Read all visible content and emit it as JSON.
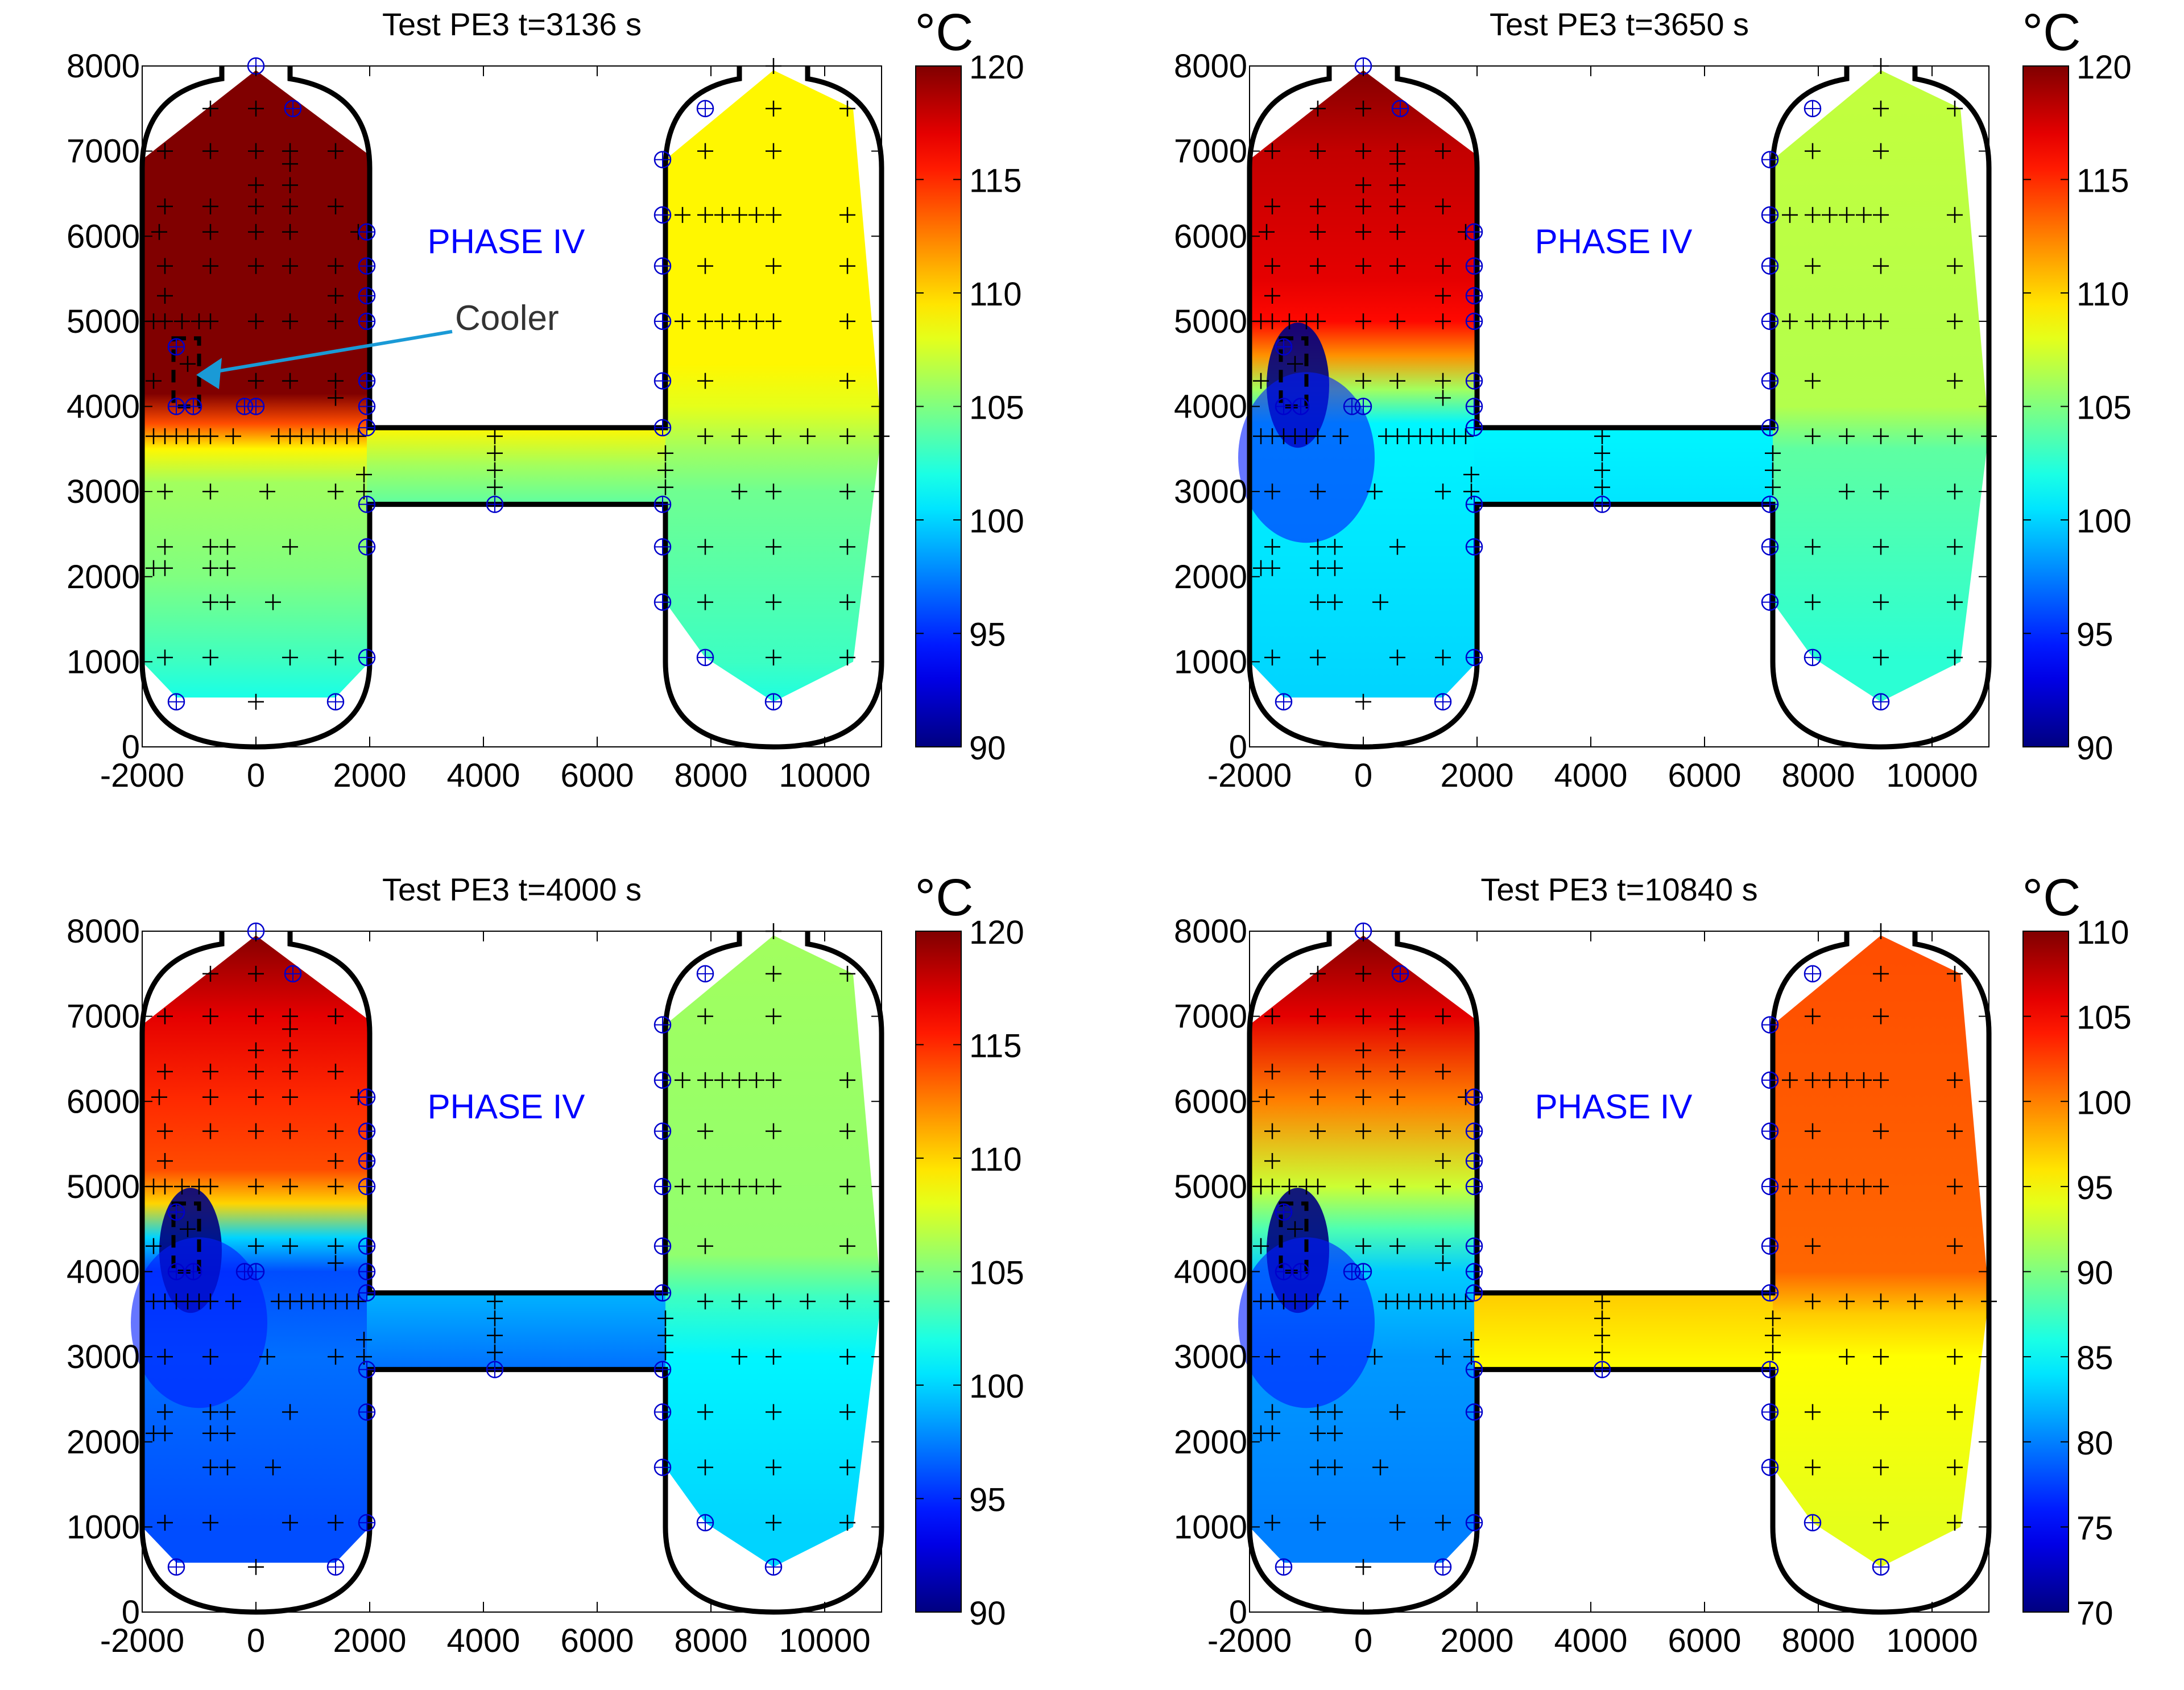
{
  "chart_data": [
    {
      "type": "heatmap",
      "title": "Test PE3     t=3136 s",
      "unit": "°C",
      "annotation": "PHASE IV",
      "callout": "Cooler",
      "xlim": [
        -2000,
        11000
      ],
      "ylim": [
        0,
        8000
      ],
      "xticks": [
        -2000,
        0,
        2000,
        4000,
        6000,
        8000,
        10000
      ],
      "yticks": [
        0,
        1000,
        2000,
        3000,
        4000,
        5000,
        6000,
        7000,
        8000
      ],
      "clim": [
        90,
        120
      ],
      "cticks": [
        90,
        95,
        100,
        105,
        110,
        115,
        120
      ],
      "cooler_spot": null,
      "field": {
        "left": [
          [
            8000,
            120
          ],
          [
            4150,
            120
          ],
          [
            3800,
            114
          ],
          [
            3500,
            109
          ],
          [
            3100,
            106
          ],
          [
            2000,
            105
          ],
          [
            1000,
            103
          ],
          [
            600,
            102
          ]
        ],
        "pipe": [
          [
            3750,
            109
          ],
          [
            3300,
            106
          ],
          [
            2850,
            104
          ]
        ],
        "right": [
          [
            8000,
            109
          ],
          [
            4500,
            109
          ],
          [
            4000,
            108
          ],
          [
            3500,
            106
          ],
          [
            3000,
            104.5
          ],
          [
            1000,
            103
          ],
          [
            500,
            102
          ]
        ]
      }
    },
    {
      "type": "heatmap",
      "title": "Test PE3     t=3650 s",
      "unit": "°C",
      "annotation": "PHASE IV",
      "callout": "",
      "xlim": [
        -2000,
        11000
      ],
      "ylim": [
        0,
        8000
      ],
      "xticks": [
        -2000,
        0,
        2000,
        4000,
        6000,
        8000,
        10000
      ],
      "yticks": [
        0,
        1000,
        2000,
        3000,
        4000,
        5000,
        6000,
        7000,
        8000
      ],
      "clim": [
        90,
        120
      ],
      "cticks": [
        90,
        95,
        100,
        105,
        110,
        115,
        120
      ],
      "cooler_spot": 90,
      "field": {
        "left": [
          [
            8000,
            120
          ],
          [
            7000,
            118
          ],
          [
            5500,
            117
          ],
          [
            5000,
            116
          ],
          [
            4600,
            112
          ],
          [
            4200,
            106
          ],
          [
            3800,
            101
          ],
          [
            600,
            100
          ]
        ],
        "pipe": [
          [
            3750,
            101
          ],
          [
            2850,
            100.5
          ]
        ],
        "right": [
          [
            8000,
            107
          ],
          [
            4000,
            106.5
          ],
          [
            3500,
            104
          ],
          [
            1000,
            102.5
          ],
          [
            500,
            102.5
          ]
        ]
      }
    },
    {
      "type": "heatmap",
      "title": "Test PE3     t=4000 s",
      "unit": "°C",
      "annotation": "PHASE IV",
      "callout": "",
      "xlim": [
        -2000,
        11000
      ],
      "ylim": [
        0,
        8000
      ],
      "xticks": [
        -2000,
        0,
        2000,
        4000,
        6000,
        8000,
        10000
      ],
      "yticks": [
        0,
        1000,
        2000,
        3000,
        4000,
        5000,
        6000,
        7000,
        8000
      ],
      "clim": [
        90,
        120
      ],
      "cticks": [
        90,
        95,
        100,
        105,
        110,
        115,
        120
      ],
      "cooler_spot": 90,
      "field": {
        "left": [
          [
            8000,
            120
          ],
          [
            7000,
            117
          ],
          [
            6000,
            115
          ],
          [
            5200,
            114
          ],
          [
            4800,
            110
          ],
          [
            4400,
            100
          ],
          [
            4000,
            96
          ],
          [
            3000,
            97
          ],
          [
            1000,
            96
          ],
          [
            600,
            96
          ]
        ],
        "pipe": [
          [
            3750,
            99
          ],
          [
            2850,
            97
          ]
        ],
        "right": [
          [
            8000,
            106
          ],
          [
            4200,
            105.5
          ],
          [
            3700,
            103
          ],
          [
            3000,
            101
          ],
          [
            1000,
            100
          ],
          [
            500,
            100
          ]
        ]
      }
    },
    {
      "type": "heatmap",
      "title": "Test PE3     t=10840 s",
      "unit": "°C",
      "annotation": "PHASE IV",
      "callout": "",
      "xlim": [
        -2000,
        11000
      ],
      "ylim": [
        0,
        8000
      ],
      "xticks": [
        -2000,
        0,
        2000,
        4000,
        6000,
        8000,
        10000
      ],
      "yticks": [
        0,
        1000,
        2000,
        3000,
        4000,
        5000,
        6000,
        7000,
        8000
      ],
      "clim": [
        70,
        110
      ],
      "cticks": [
        70,
        75,
        80,
        85,
        90,
        95,
        100,
        105,
        110
      ],
      "cooler_spot": 70,
      "field": {
        "left": [
          [
            8000,
            110
          ],
          [
            7000,
            106
          ],
          [
            6000,
            100
          ],
          [
            5000,
            93
          ],
          [
            4500,
            88
          ],
          [
            4000,
            83
          ],
          [
            3000,
            81
          ],
          [
            1000,
            80
          ],
          [
            600,
            80
          ]
        ],
        "pipe": [
          [
            3750,
            97
          ],
          [
            2850,
            95
          ]
        ],
        "right": [
          [
            8000,
            102
          ],
          [
            4000,
            101
          ],
          [
            3500,
            97
          ],
          [
            3000,
            95
          ],
          [
            1000,
            94
          ],
          [
            500,
            94
          ]
        ]
      }
    }
  ],
  "colormap": "jet",
  "colors": {
    "annotation": "#0000ff",
    "callout_arrow": "#1a9ad6",
    "sensor_circle": "#0000cc",
    "outline": "#000000"
  },
  "sensors_plus": [
    [
      -1600,
      7000
    ],
    [
      -800,
      7000
    ],
    [
      0,
      7000
    ],
    [
      600,
      7000
    ],
    [
      1400,
      7000
    ],
    [
      0,
      7500
    ],
    [
      -800,
      7500
    ],
    [
      0,
      6600
    ],
    [
      600,
      6600
    ],
    [
      600,
      6850
    ],
    [
      -1600,
      6350
    ],
    [
      -800,
      6350
    ],
    [
      0,
      6350
    ],
    [
      600,
      6350
    ],
    [
      1400,
      6350
    ],
    [
      -1700,
      6050
    ],
    [
      -800,
      6050
    ],
    [
      0,
      6050
    ],
    [
      600,
      6050
    ],
    [
      1800,
      6050
    ],
    [
      -1600,
      5650
    ],
    [
      -800,
      5650
    ],
    [
      0,
      5650
    ],
    [
      600,
      5650
    ],
    [
      1400,
      5650
    ],
    [
      -1600,
      5300
    ],
    [
      1400,
      5300
    ],
    [
      -1800,
      5000
    ],
    [
      -1600,
      5000
    ],
    [
      -1300,
      5000
    ],
    [
      -1000,
      5000
    ],
    [
      -800,
      5000
    ],
    [
      0,
      5000
    ],
    [
      600,
      5000
    ],
    [
      1400,
      5000
    ],
    [
      -1800,
      4300
    ],
    [
      0,
      4300
    ],
    [
      600,
      4300
    ],
    [
      1400,
      4300
    ],
    [
      1400,
      4100
    ],
    [
      -1200,
      4500
    ],
    [
      -1800,
      3650
    ],
    [
      -1600,
      3650
    ],
    [
      -1400,
      3650
    ],
    [
      -1200,
      3650
    ],
    [
      -1000,
      3650
    ],
    [
      -800,
      3650
    ],
    [
      -400,
      3650
    ],
    [
      400,
      3650
    ],
    [
      600,
      3650
    ],
    [
      800,
      3650
    ],
    [
      1000,
      3650
    ],
    [
      1200,
      3650
    ],
    [
      1400,
      3650
    ],
    [
      1600,
      3650
    ],
    [
      1800,
      3650
    ],
    [
      -1600,
      3000
    ],
    [
      -800,
      3000
    ],
    [
      200,
      3000
    ],
    [
      1400,
      3000
    ],
    [
      1900,
      3200
    ],
    [
      1900,
      3000
    ],
    [
      -1600,
      2350
    ],
    [
      -800,
      2350
    ],
    [
      -500,
      2350
    ],
    [
      600,
      2350
    ],
    [
      -1800,
      2100
    ],
    [
      -1600,
      2100
    ],
    [
      -800,
      2100
    ],
    [
      -500,
      2100
    ],
    [
      -800,
      1700
    ],
    [
      -500,
      1700
    ],
    [
      300,
      1700
    ],
    [
      -1600,
      1050
    ],
    [
      -800,
      1050
    ],
    [
      600,
      1050
    ],
    [
      1400,
      1050
    ],
    [
      0,
      530
    ],
    [
      4200,
      3650
    ],
    [
      4200,
      3450
    ],
    [
      4200,
      3250
    ],
    [
      4200,
      3050
    ],
    [
      7200,
      3450
    ],
    [
      7200,
      3250
    ],
    [
      7200,
      3050
    ],
    [
      9100,
      8000
    ],
    [
      9100,
      7500
    ],
    [
      10400,
      7500
    ],
    [
      7900,
      7000
    ],
    [
      9100,
      7000
    ],
    [
      7500,
      6250
    ],
    [
      7900,
      6250
    ],
    [
      8200,
      6250
    ],
    [
      8500,
      6250
    ],
    [
      8800,
      6250
    ],
    [
      9100,
      6250
    ],
    [
      10400,
      6250
    ],
    [
      7900,
      5650
    ],
    [
      9100,
      5650
    ],
    [
      10400,
      5650
    ],
    [
      7500,
      5000
    ],
    [
      7900,
      5000
    ],
    [
      8200,
      5000
    ],
    [
      8500,
      5000
    ],
    [
      8800,
      5000
    ],
    [
      9100,
      5000
    ],
    [
      10400,
      5000
    ],
    [
      7900,
      4300
    ],
    [
      10400,
      4300
    ],
    [
      7900,
      3650
    ],
    [
      8500,
      3650
    ],
    [
      9100,
      3650
    ],
    [
      9700,
      3650
    ],
    [
      10400,
      3650
    ],
    [
      11000,
      3650
    ],
    [
      8500,
      3000
    ],
    [
      9100,
      3000
    ],
    [
      10400,
      3000
    ],
    [
      7900,
      2350
    ],
    [
      9100,
      2350
    ],
    [
      10400,
      2350
    ],
    [
      7900,
      1700
    ],
    [
      9100,
      1700
    ],
    [
      10400,
      1700
    ],
    [
      9100,
      1050
    ],
    [
      10400,
      1050
    ]
  ],
  "sensors_circle": [
    [
      0,
      8000
    ],
    [
      650,
      7500
    ],
    [
      -1400,
      530
    ],
    [
      1400,
      530
    ],
    [
      1950,
      1050
    ],
    [
      1950,
      2350
    ],
    [
      1950,
      2850
    ],
    [
      1950,
      3750
    ],
    [
      1950,
      4000
    ],
    [
      1950,
      4300
    ],
    [
      1950,
      5000
    ],
    [
      1950,
      5300
    ],
    [
      1950,
      5650
    ],
    [
      1950,
      6050
    ],
    [
      -1400,
      4700
    ],
    [
      -1400,
      4000
    ],
    [
      -1100,
      4000
    ],
    [
      -200,
      4000
    ],
    [
      0,
      4000
    ],
    [
      7150,
      6900
    ],
    [
      7150,
      6250
    ],
    [
      7150,
      5650
    ],
    [
      7150,
      5000
    ],
    [
      7150,
      4300
    ],
    [
      7150,
      3750
    ],
    [
      7150,
      2850
    ],
    [
      7150,
      2350
    ],
    [
      7150,
      1700
    ],
    [
      7900,
      7500
    ],
    [
      7900,
      1050
    ],
    [
      9100,
      530
    ],
    [
      4200,
      2850
    ]
  ]
}
